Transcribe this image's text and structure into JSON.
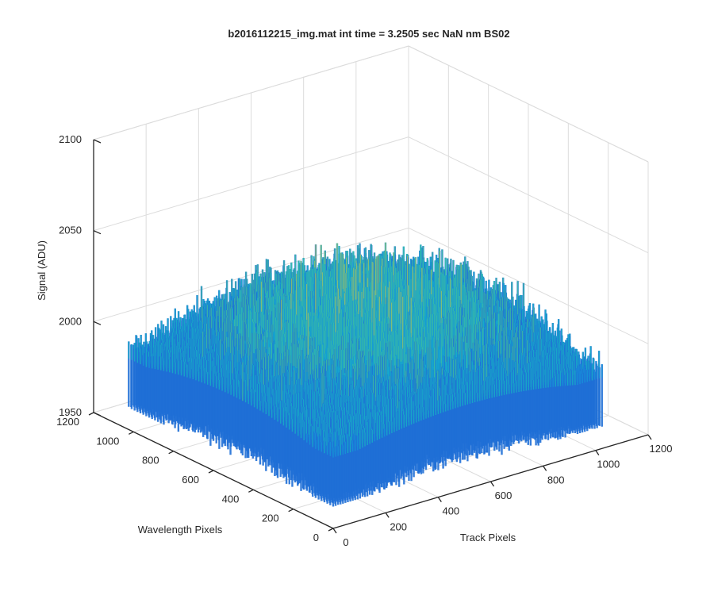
{
  "chart_data": {
    "type": "surface",
    "title": "b2016112215_img.mat int time = 3.2505 sec  NaN nm BS02",
    "xlabel": "Track Pixels",
    "ylabel": "Wavelength Pixels",
    "zlabel": "Signal (ADU)",
    "xlim": [
      0,
      1200
    ],
    "ylim": [
      0,
      1200
    ],
    "zlim": [
      1950,
      2100
    ],
    "x_ticks": [
      "0",
      "200",
      "400",
      "600",
      "800",
      "1000",
      "1200"
    ],
    "y_ticks": [
      "0",
      "200",
      "400",
      "600",
      "800",
      "1000",
      "1200"
    ],
    "z_ticks": [
      "1950",
      "2000",
      "2050",
      "2100"
    ],
    "grid": true,
    "colormap": [
      "#1f6fd6",
      "#1596d8",
      "#17b0c5",
      "#3cbf9f",
      "#9ac762",
      "#d7cf3c"
    ],
    "surface": {
      "x_range": [
        0,
        1024
      ],
      "y_range": [
        0,
        1024
      ],
      "base_level": 1985,
      "peak_level": 2072,
      "min_level": 1962,
      "noise_style": "dense spiky noise"
    }
  }
}
